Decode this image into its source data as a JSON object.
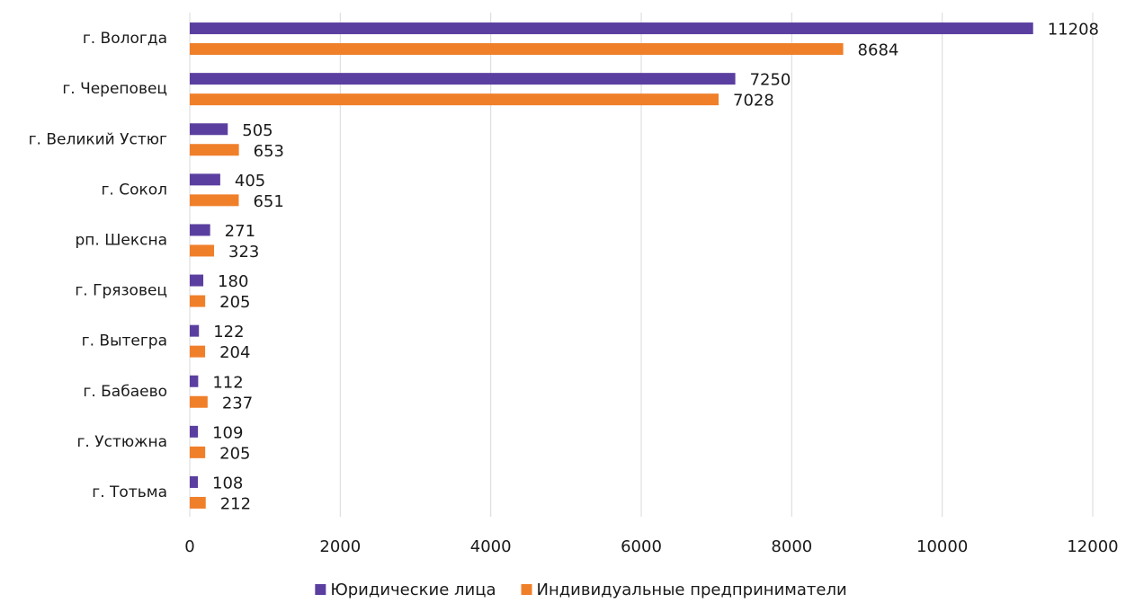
{
  "chart_data": {
    "type": "bar",
    "orientation": "horizontal",
    "categories": [
      "г. Вологда",
      "г. Череповец",
      "г. Великий Устюг",
      "г. Сокол",
      "рп. Шексна",
      "г. Грязовец",
      "г. Вытегра",
      "г. Бабаево",
      "г. Устюжна",
      "г. Тотьма"
    ],
    "series": [
      {
        "name": "Юридические лица",
        "color": "#5b3fa0",
        "values": [
          11208,
          7250,
          505,
          405,
          271,
          180,
          122,
          112,
          109,
          108
        ]
      },
      {
        "name": "Индивидуальные предприниматели",
        "color": "#f07f2a",
        "values": [
          8684,
          7028,
          653,
          651,
          323,
          205,
          204,
          237,
          205,
          212
        ]
      }
    ],
    "xlim": [
      0,
      12000
    ],
    "xticks": [
      0,
      2000,
      4000,
      6000,
      8000,
      10000,
      12000
    ],
    "grid": true,
    "legend_position": "bottom",
    "data_labels": true
  }
}
